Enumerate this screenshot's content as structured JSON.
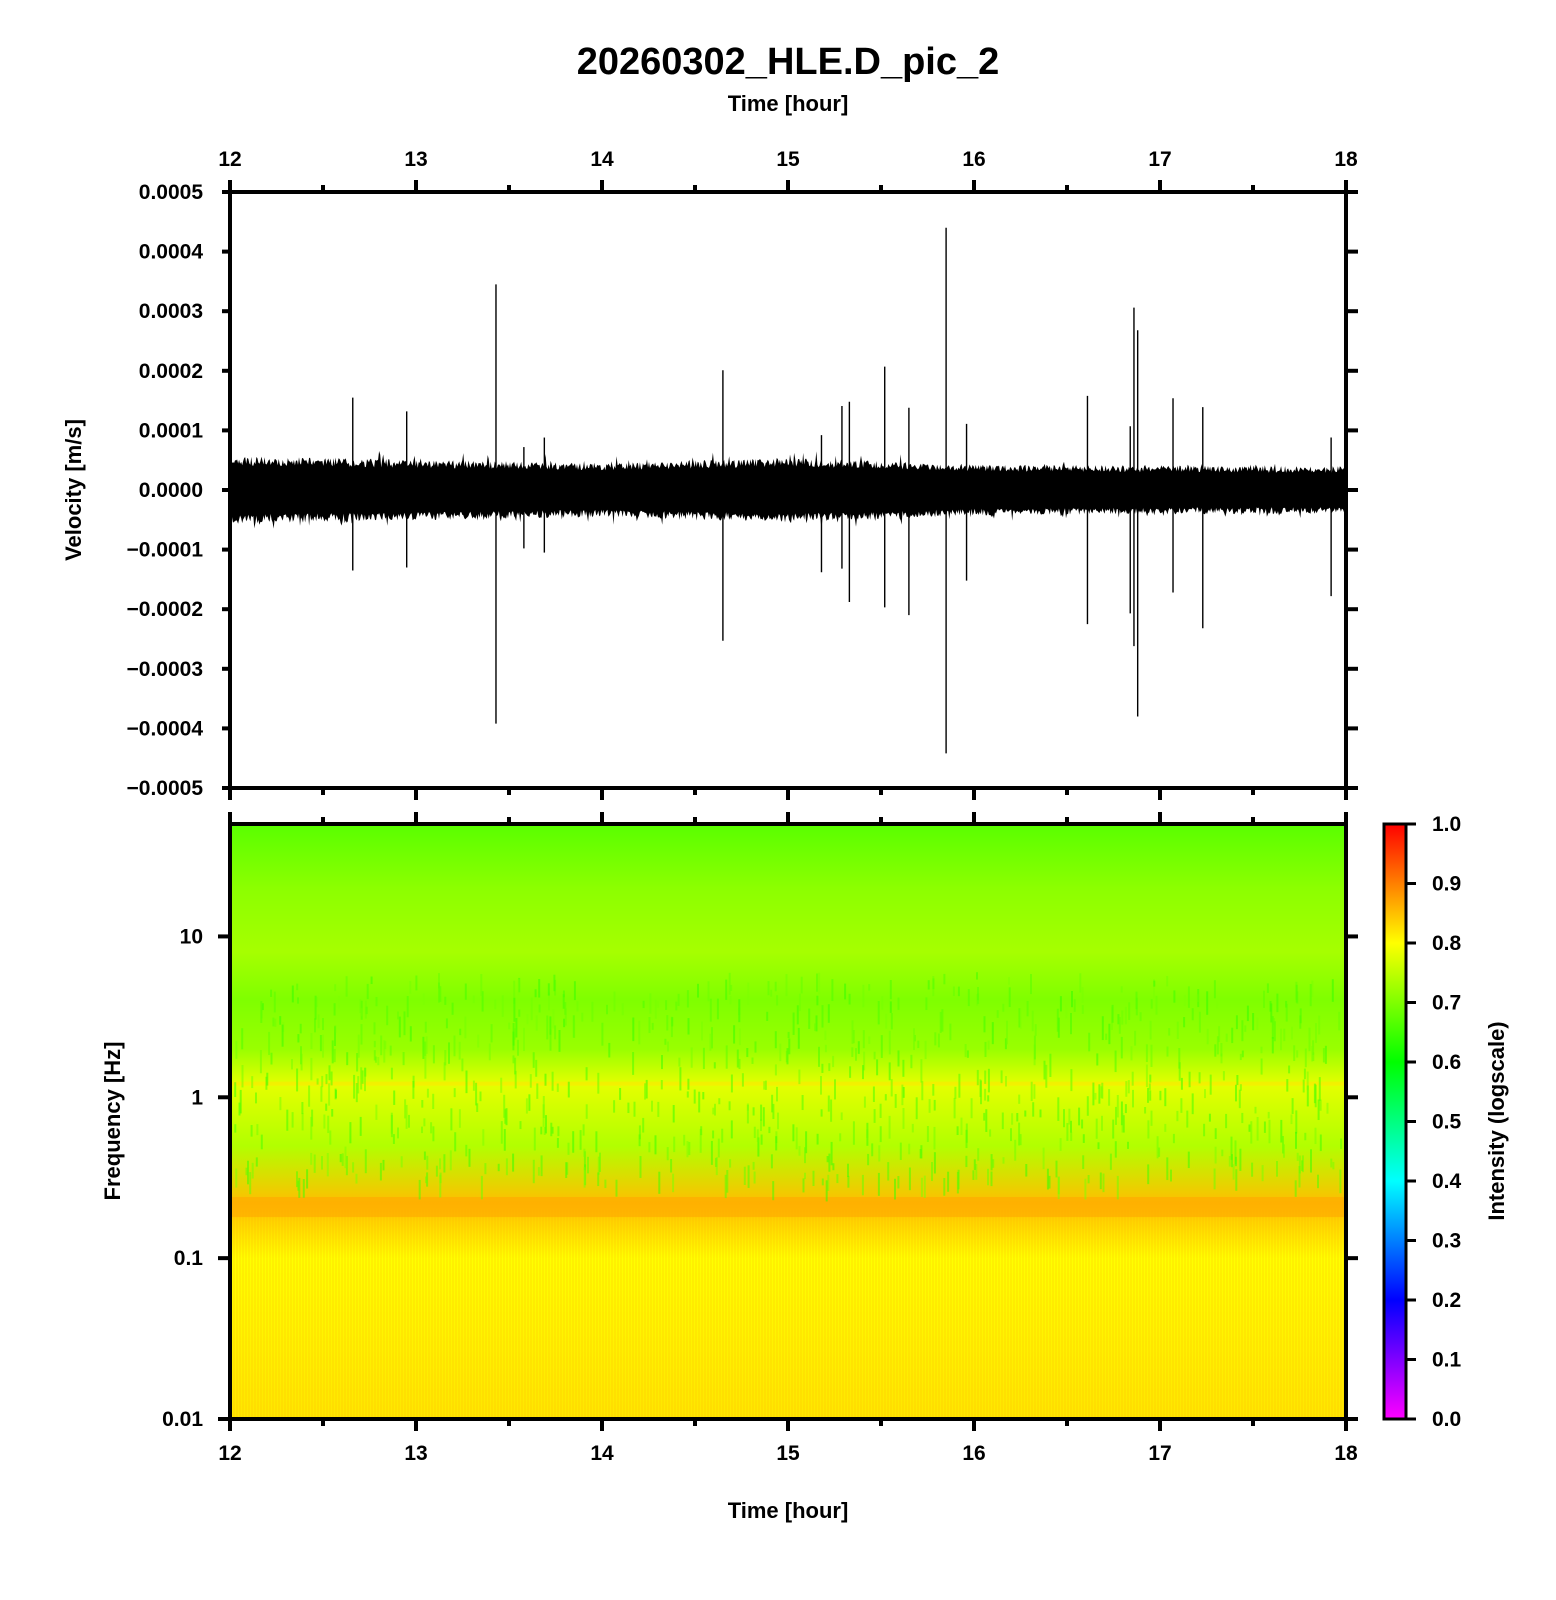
{
  "title": "20260302_HLE.D_pic_2",
  "chart_data": [
    {
      "type": "line",
      "name": "waveform",
      "top_xlabel": "Time [hour]",
      "ylabel": "Velocity [m/s]",
      "xlim": [
        12,
        18
      ],
      "ylim": [
        -0.0005,
        0.0005
      ],
      "xticks": [
        "12",
        "13",
        "14",
        "15",
        "16",
        "17",
        "18"
      ],
      "yticks": [
        "0.0005",
        "0.0004",
        "0.0003",
        "0.0002",
        "0.0001",
        "0.0000",
        "−0.0001",
        "−0.0002",
        "−0.0003",
        "−0.0004",
        "−0.0005"
      ],
      "noise_level_segments": [
        {
          "x": 12.0,
          "amplitude": 5e-05
        },
        {
          "x": 13.0,
          "amplitude": 4.5e-05
        },
        {
          "x": 14.0,
          "amplitude": 4e-05
        },
        {
          "x": 15.0,
          "amplitude": 4.8e-05
        },
        {
          "x": 16.0,
          "amplitude": 3.8e-05
        },
        {
          "x": 17.0,
          "amplitude": 3.6e-05
        },
        {
          "x": 18.0,
          "amplitude": 3.5e-05
        }
      ],
      "spikes": [
        {
          "x": 12.66,
          "max": 0.000155,
          "min": -0.000135
        },
        {
          "x": 12.95,
          "max": 0.000132,
          "min": -0.00013
        },
        {
          "x": 13.43,
          "max": 0.000345,
          "min": -0.000392
        },
        {
          "x": 13.58,
          "max": 7.2e-05,
          "min": -9.8e-05
        },
        {
          "x": 13.69,
          "max": 8.8e-05,
          "min": -0.000105
        },
        {
          "x": 14.65,
          "max": 0.000201,
          "min": -0.000253
        },
        {
          "x": 15.18,
          "max": 9.2e-05,
          "min": -0.000138
        },
        {
          "x": 15.29,
          "max": 0.000141,
          "min": -0.000132
        },
        {
          "x": 15.33,
          "max": 0.000148,
          "min": -0.000188
        },
        {
          "x": 15.52,
          "max": 0.000207,
          "min": -0.000197
        },
        {
          "x": 15.65,
          "max": 0.000138,
          "min": -0.00021
        },
        {
          "x": 15.85,
          "max": 0.00044,
          "min": -0.000442
        },
        {
          "x": 15.96,
          "max": 0.000111,
          "min": -0.000152
        },
        {
          "x": 16.61,
          "max": 0.000158,
          "min": -0.000225
        },
        {
          "x": 16.84,
          "max": 0.000107,
          "min": -0.000207
        },
        {
          "x": 16.86,
          "max": 0.000306,
          "min": -0.000262
        },
        {
          "x": 16.88,
          "max": 0.000268,
          "min": -0.00038
        },
        {
          "x": 17.07,
          "max": 0.000154,
          "min": -0.000172
        },
        {
          "x": 17.23,
          "max": 0.000139,
          "min": -0.000232
        },
        {
          "x": 17.92,
          "max": 8.8e-05,
          "min": -0.000178
        }
      ]
    },
    {
      "type": "heatmap",
      "name": "spectrogram",
      "xlabel": "Time [hour]",
      "ylabel": "Frequency [Hz]",
      "xlim": [
        12,
        18
      ],
      "ylim": [
        0.01,
        50
      ],
      "yscale": "log",
      "xticks": [
        "12",
        "13",
        "14",
        "15",
        "16",
        "17",
        "18"
      ],
      "yticks": [
        "10",
        "1",
        "0.1",
        "0.01"
      ],
      "ytick_values": [
        10,
        1,
        0.1,
        0.01
      ],
      "intensity_profile": [
        {
          "freq": 50,
          "intensity": 0.67
        },
        {
          "freq": 20,
          "intensity": 0.71
        },
        {
          "freq": 8,
          "intensity": 0.73
        },
        {
          "freq": 4,
          "intensity": 0.7
        },
        {
          "freq": 2,
          "intensity": 0.72
        },
        {
          "freq": 1.2,
          "intensity": 0.78
        },
        {
          "freq": 0.5,
          "intensity": 0.74
        },
        {
          "freq": 0.22,
          "intensity": 0.85
        },
        {
          "freq": 0.1,
          "intensity": 0.8
        },
        {
          "freq": 0.01,
          "intensity": 0.82
        }
      ]
    },
    {
      "type": "colorbar",
      "name": "intensity-colorbar",
      "label": "Intensity (logscale)",
      "range": [
        0.0,
        1.0
      ],
      "ticks": [
        "1.0",
        "0.9",
        "0.8",
        "0.7",
        "0.6",
        "0.5",
        "0.4",
        "0.3",
        "0.2",
        "0.1",
        "0.0"
      ],
      "colormap_stops": [
        {
          "v": 0.0,
          "color": "#ff00ff"
        },
        {
          "v": 0.2,
          "color": "#0000ff"
        },
        {
          "v": 0.4,
          "color": "#00ffff"
        },
        {
          "v": 0.6,
          "color": "#00ff00"
        },
        {
          "v": 0.8,
          "color": "#ffff00"
        },
        {
          "v": 1.0,
          "color": "#ff0000"
        }
      ]
    }
  ]
}
